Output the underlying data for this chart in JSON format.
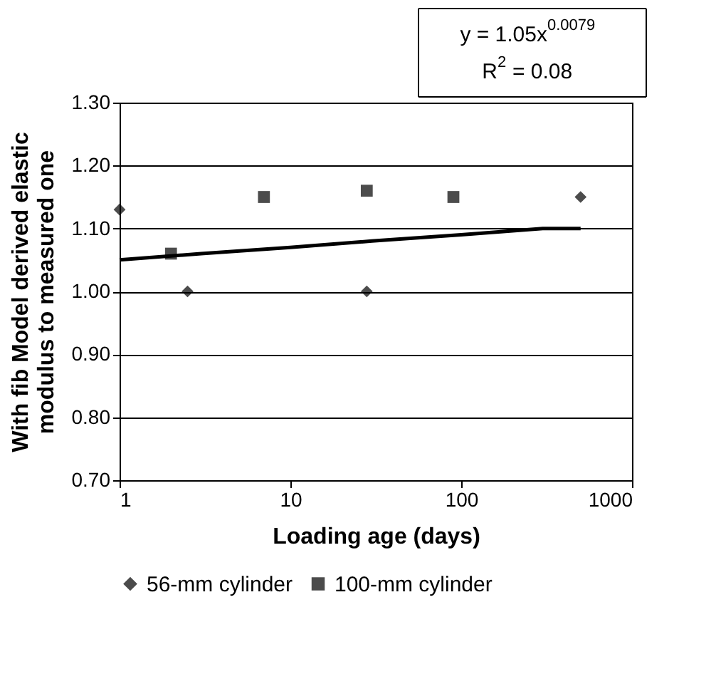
{
  "chart_data": {
    "type": "scatter",
    "xlabel": "Loading age (days)",
    "ylabel": "With fib Model derived elastic modulus to measured one",
    "xlim": [
      1,
      1000
    ],
    "xticks": [
      1,
      10,
      100,
      1000
    ],
    "log": "x",
    "ylim": [
      0.7,
      1.3
    ],
    "yticks": [
      {
        "value": 0.7,
        "label": "0.70"
      },
      {
        "value": 0.8,
        "label": "0.80"
      },
      {
        "value": 0.9,
        "label": "0.90"
      },
      {
        "value": 1.0,
        "label": "1.00"
      },
      {
        "value": 1.1,
        "label": "1.10"
      },
      {
        "value": 1.2,
        "label": "1.20"
      },
      {
        "value": 1.3,
        "label": "1.30"
      }
    ],
    "grid": "y",
    "legend": "bottom",
    "series": [
      {
        "name": "56-mm cylinder",
        "color": "#000000",
        "marker": "diamond",
        "x": [
          1,
          2.5,
          28,
          500
        ],
        "values": [
          1.13,
          1.0,
          1.0,
          1.15
        ]
      },
      {
        "name": "100-mm cylinder",
        "color": "#000000",
        "marker": "square",
        "x": [
          2,
          7,
          28,
          90
        ],
        "values": [
          1.06,
          1.15,
          1.16,
          1.15
        ]
      },
      {
        "type": "line",
        "color": "#000000",
        "x": [
          1,
          3,
          10,
          30,
          100,
          300,
          500
        ],
        "values": [
          1.05,
          1.06,
          1.07,
          1.08,
          1.09,
          1.1,
          1.1
        ]
      }
    ],
    "annotations": [
      "y = 1.05x$^{0.0079}$",
      "R$^{2}$ = 0.08"
    ]
  }
}
